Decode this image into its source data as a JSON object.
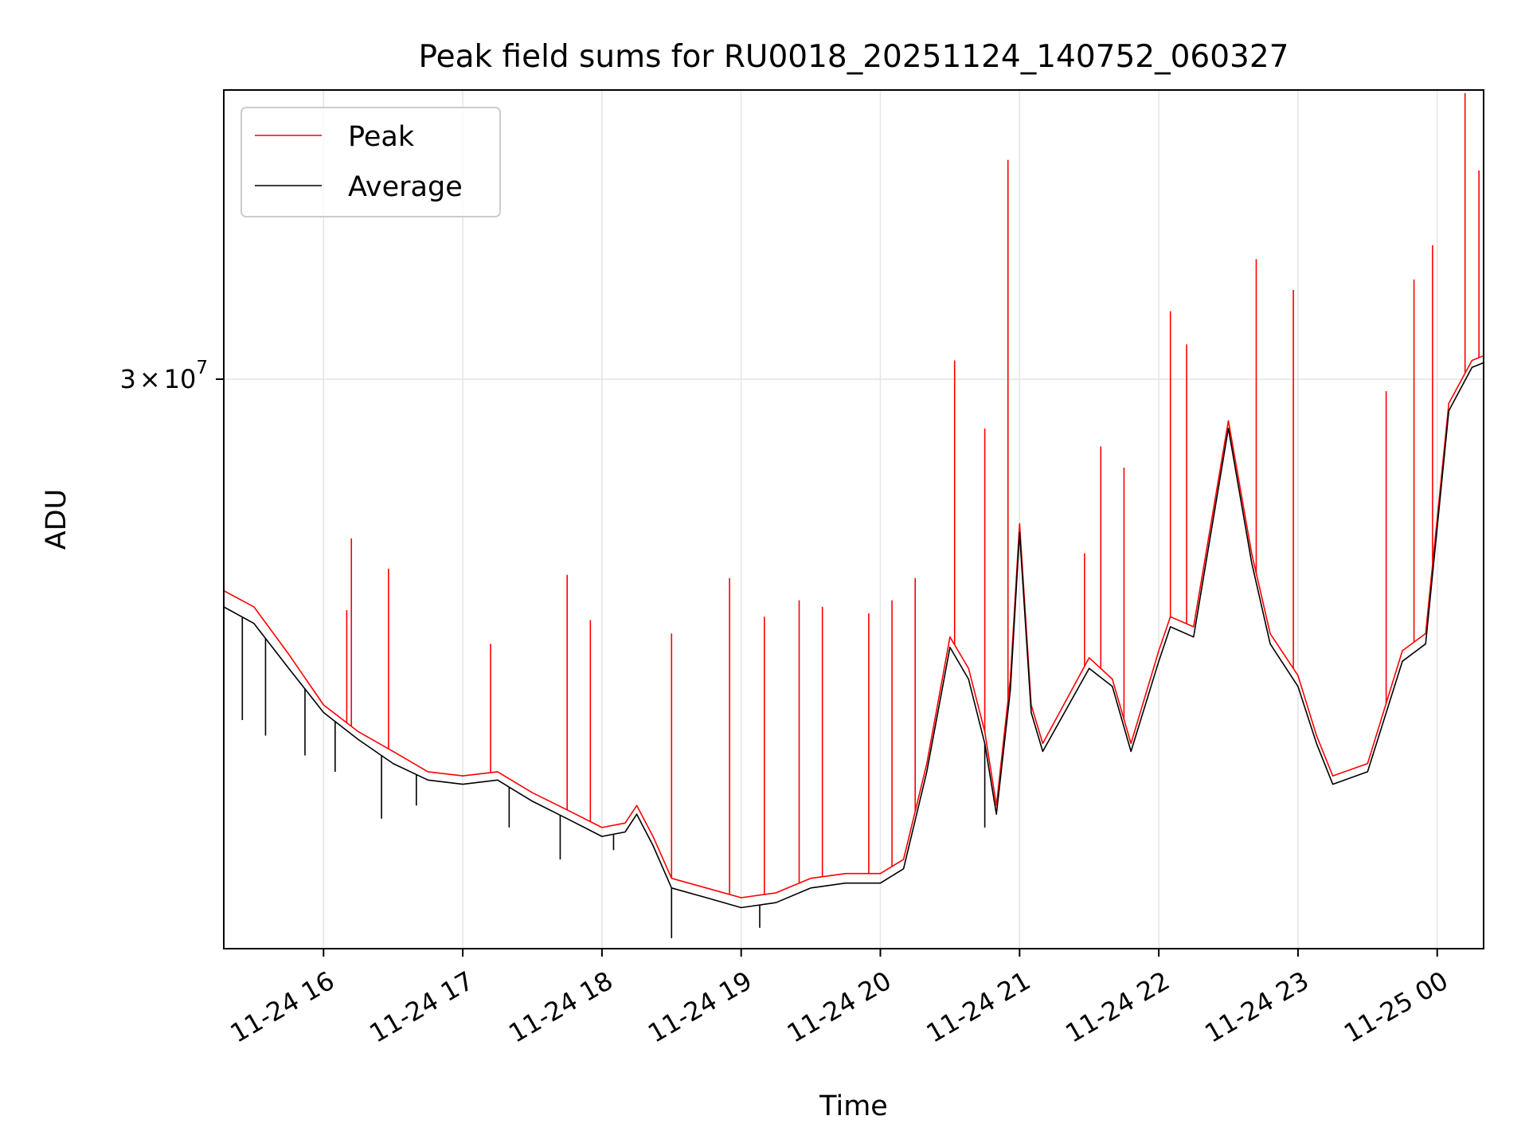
{
  "chart_data": {
    "type": "line",
    "title": "Peak field sums for RU0018_20251124_140752_060327",
    "xlabel": "Time",
    "ylabel": "ADU",
    "y_scale": "log",
    "ylim": [
      13500000,
      45000000
    ],
    "xlim": [
      "11-24 15:17",
      "11-25 00:20"
    ],
    "x_ticks": [
      "11-24 16",
      "11-24 17",
      "11-24 18",
      "11-24 19",
      "11-24 20",
      "11-24 21",
      "11-24 22",
      "11-24 23",
      "11-25 00"
    ],
    "y_tick": {
      "value": 30000000,
      "label_mantissa": "3",
      "label_times": "×",
      "label_base": "10",
      "label_exp": "7"
    },
    "grid": true,
    "legend_position": "top-left",
    "legend": {
      "peak_label": "Peak",
      "average_label": "Average"
    },
    "colors": {
      "peak": "#ff0000",
      "average": "#000000",
      "grid": "#e6e6e6"
    },
    "series": [
      {
        "name": "Peak",
        "color": "#ff0000",
        "points": [
          [
            "11-24 15:17",
            22300000
          ],
          [
            "11-24 15:30",
            21800000
          ],
          [
            "11-24 15:45",
            20400000
          ],
          [
            "11-24 16:00",
            19000000
          ],
          [
            "11-24 16:15",
            18300000
          ],
          [
            "11-24 16:30",
            17800000
          ],
          [
            "11-24 16:45",
            17300000
          ],
          [
            "11-24 17:00",
            17200000
          ],
          [
            "11-24 17:15",
            17300000
          ],
          [
            "11-24 17:30",
            16800000
          ],
          [
            "11-24 17:45",
            16400000
          ],
          [
            "11-24 18:00",
            16000000
          ],
          [
            "11-24 18:10",
            16100000
          ],
          [
            "11-24 18:15",
            16500000
          ],
          [
            "11-24 18:22",
            15800000
          ],
          [
            "11-24 18:30",
            14900000
          ],
          [
            "11-24 18:45",
            14700000
          ],
          [
            "11-24 19:00",
            14500000
          ],
          [
            "11-24 19:15",
            14600000
          ],
          [
            "11-24 19:30",
            14900000
          ],
          [
            "11-24 19:45",
            15000000
          ],
          [
            "11-24 20:00",
            15000000
          ],
          [
            "11-24 20:10",
            15300000
          ],
          [
            "11-24 20:20",
            17500000
          ],
          [
            "11-24 20:30",
            20900000
          ],
          [
            "11-24 20:38",
            20000000
          ],
          [
            "11-24 20:45",
            18300000
          ],
          [
            "11-24 20:50",
            16500000
          ],
          [
            "11-24 20:56",
            19700000
          ],
          [
            "11-24 21:00",
            24500000
          ],
          [
            "11-24 21:05",
            19000000
          ],
          [
            "11-24 21:10",
            18000000
          ],
          [
            "11-24 21:30",
            20300000
          ],
          [
            "11-24 21:40",
            19700000
          ],
          [
            "11-24 21:48",
            18000000
          ],
          [
            "11-24 22:00",
            20500000
          ],
          [
            "11-24 22:05",
            21500000
          ],
          [
            "11-24 22:15",
            21200000
          ],
          [
            "11-24 22:30",
            28300000
          ],
          [
            "11-24 22:40",
            23500000
          ],
          [
            "11-24 22:48",
            21000000
          ],
          [
            "11-24 23:00",
            19800000
          ],
          [
            "11-24 23:08",
            18200000
          ],
          [
            "11-24 23:15",
            17200000
          ],
          [
            "11-24 23:30",
            17500000
          ],
          [
            "11-24 23:45",
            20500000
          ],
          [
            "11-24 23:55",
            21000000
          ],
          [
            "11-25 00:05",
            29000000
          ],
          [
            "11-25 00:15",
            30800000
          ],
          [
            "11-25 00:20",
            31000000
          ]
        ]
      },
      {
        "name": "Average",
        "color": "#000000",
        "points": [
          [
            "11-24 15:17",
            21800000
          ],
          [
            "11-24 15:30",
            21300000
          ],
          [
            "11-24 15:45",
            20000000
          ],
          [
            "11-24 16:00",
            18800000
          ],
          [
            "11-24 16:15",
            18100000
          ],
          [
            "11-24 16:30",
            17500000
          ],
          [
            "11-24 16:45",
            17100000
          ],
          [
            "11-24 17:00",
            17000000
          ],
          [
            "11-24 17:15",
            17100000
          ],
          [
            "11-24 17:30",
            16600000
          ],
          [
            "11-24 17:45",
            16200000
          ],
          [
            "11-24 18:00",
            15800000
          ],
          [
            "11-24 18:10",
            15900000
          ],
          [
            "11-24 18:15",
            16300000
          ],
          [
            "11-24 18:22",
            15600000
          ],
          [
            "11-24 18:30",
            14700000
          ],
          [
            "11-24 18:45",
            14500000
          ],
          [
            "11-24 19:00",
            14300000
          ],
          [
            "11-24 19:15",
            14400000
          ],
          [
            "11-24 19:30",
            14700000
          ],
          [
            "11-24 19:45",
            14800000
          ],
          [
            "11-24 20:00",
            14800000
          ],
          [
            "11-24 20:10",
            15100000
          ],
          [
            "11-24 20:20",
            17300000
          ],
          [
            "11-24 20:30",
            20600000
          ],
          [
            "11-24 20:38",
            19700000
          ],
          [
            "11-24 20:45",
            18000000
          ],
          [
            "11-24 20:50",
            16300000
          ],
          [
            "11-24 20:56",
            19400000
          ],
          [
            "11-24 21:00",
            24200000
          ],
          [
            "11-24 21:05",
            18800000
          ],
          [
            "11-24 21:10",
            17800000
          ],
          [
            "11-24 21:30",
            20000000
          ],
          [
            "11-24 21:40",
            19500000
          ],
          [
            "11-24 21:48",
            17800000
          ],
          [
            "11-24 22:00",
            20200000
          ],
          [
            "11-24 22:05",
            21200000
          ],
          [
            "11-24 22:15",
            20900000
          ],
          [
            "11-24 22:30",
            28000000
          ],
          [
            "11-24 22:40",
            23200000
          ],
          [
            "11-24 22:48",
            20700000
          ],
          [
            "11-24 23:00",
            19500000
          ],
          [
            "11-24 23:08",
            18000000
          ],
          [
            "11-24 23:15",
            17000000
          ],
          [
            "11-24 23:30",
            17300000
          ],
          [
            "11-24 23:45",
            20200000
          ],
          [
            "11-24 23:55",
            20700000
          ],
          [
            "11-25 00:05",
            28700000
          ],
          [
            "11-25 00:15",
            30500000
          ],
          [
            "11-25 00:20",
            30700000
          ]
        ]
      }
    ],
    "peak_spikes": [
      [
        "11-24 16:10",
        21700000
      ],
      [
        "11-24 16:12",
        24000000
      ],
      [
        "11-24 16:28",
        23000000
      ],
      [
        "11-24 17:12",
        20700000
      ],
      [
        "11-24 17:45",
        22800000
      ],
      [
        "11-24 17:55",
        21400000
      ],
      [
        "11-24 18:30",
        21000000
      ],
      [
        "11-24 18:55",
        22700000
      ],
      [
        "11-24 19:10",
        21500000
      ],
      [
        "11-24 19:25",
        22000000
      ],
      [
        "11-24 19:35",
        21800000
      ],
      [
        "11-24 19:55",
        21600000
      ],
      [
        "11-24 20:05",
        22000000
      ],
      [
        "11-24 20:15",
        22700000
      ],
      [
        "11-24 20:32",
        30800000
      ],
      [
        "11-24 20:45",
        28000000
      ],
      [
        "11-24 20:55",
        40800000
      ],
      [
        "11-24 21:28",
        23500000
      ],
      [
        "11-24 21:35",
        27300000
      ],
      [
        "11-24 21:45",
        26500000
      ],
      [
        "11-24 22:05",
        33000000
      ],
      [
        "11-24 22:12",
        31500000
      ],
      [
        "11-24 22:42",
        35500000
      ],
      [
        "11-24 22:58",
        34000000
      ],
      [
        "11-24 23:38",
        29500000
      ],
      [
        "11-24 23:50",
        34500000
      ],
      [
        "11-24 23:58",
        36200000
      ],
      [
        "11-25 00:12",
        44800000
      ],
      [
        "11-25 00:18",
        40200000
      ]
    ],
    "average_dips": [
      [
        "11-24 15:25",
        18600000
      ],
      [
        "11-24 15:35",
        18200000
      ],
      [
        "11-24 15:52",
        17700000
      ],
      [
        "11-24 16:05",
        17300000
      ],
      [
        "11-24 16:25",
        16200000
      ],
      [
        "11-24 16:40",
        16500000
      ],
      [
        "11-24 17:20",
        16000000
      ],
      [
        "11-24 17:42",
        15300000
      ],
      [
        "11-24 18:05",
        15500000
      ],
      [
        "11-24 18:30",
        13700000
      ],
      [
        "11-24 19:08",
        13900000
      ],
      [
        "11-24 20:45",
        16000000
      ]
    ]
  }
}
